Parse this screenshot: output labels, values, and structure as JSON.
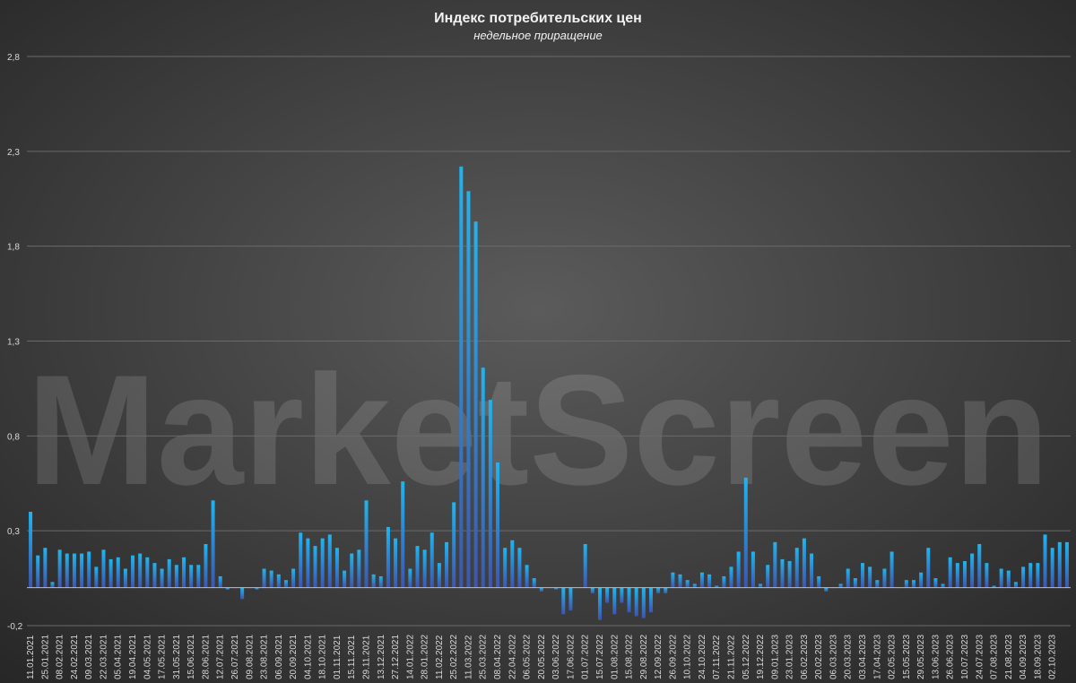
{
  "chart_data": {
    "type": "bar",
    "title": "Индекс потребительских цен",
    "subtitle": "недельное приращение",
    "watermark": "MarketScreen",
    "color": "#1fb4f0",
    "grid": true,
    "ylim": [
      -0.2,
      2.8
    ],
    "yticks": [
      {
        "value": -0.2,
        "label": "-0,2"
      },
      {
        "value": 0.3,
        "label": "0,3"
      },
      {
        "value": 0.8,
        "label": "0,8"
      },
      {
        "value": 1.3,
        "label": "1,3"
      },
      {
        "value": 1.8,
        "label": "1,8"
      },
      {
        "value": 2.3,
        "label": "2,3"
      },
      {
        "value": 2.8,
        "label": "2,8"
      }
    ],
    "categories": [
      "11.01.2021",
      null,
      "25.01.2021",
      null,
      "08.02.2021",
      null,
      "24.02.2021",
      null,
      "09.03.2021",
      null,
      "22.03.2021",
      null,
      "05.04.2021",
      null,
      "19.04.2021",
      null,
      "04.05.2021",
      null,
      "17.05.2021",
      null,
      "31.05.2021",
      null,
      "15.06.2021",
      null,
      "28.06.2021",
      null,
      "12.07.2021",
      null,
      "26.07.2021",
      null,
      "09.08.2021",
      null,
      "23.08.2021",
      null,
      "06.09.2021",
      null,
      "20.09.2021",
      null,
      "04.10.2021",
      null,
      "18.10.2021",
      null,
      "01.11.2021",
      null,
      "15.11.2021",
      null,
      "29.11.2021",
      null,
      "13.12.2021",
      null,
      "27.12.2021",
      null,
      "14.01.2022",
      null,
      "28.01.2022",
      null,
      "11.02.2022",
      null,
      "25.02.2022",
      null,
      "11.03.2022",
      null,
      "25.03.2022",
      null,
      "08.04.2022",
      null,
      "22.04.2022",
      null,
      "06.05.2022",
      null,
      "20.05.2022",
      null,
      "03.06.2022",
      null,
      "17.06.2022",
      null,
      "01.07.2022",
      null,
      "15.07.2022",
      null,
      "01.08.2022",
      null,
      "15.08.2022",
      null,
      "29.08.2022",
      null,
      "12.09.2022",
      null,
      "26.09.2022",
      null,
      "10.10.2022",
      null,
      "24.10.2022",
      null,
      "07.11.2022",
      null,
      "21.11.2022",
      null,
      "05.12.2022",
      null,
      "19.12.2022",
      null,
      "09.01.2023",
      null,
      "23.01.2023",
      null,
      "06.02.2023",
      null,
      "20.02.2023",
      null,
      "06.03.2023",
      null,
      "20.03.2023",
      null,
      "03.04.2023",
      null,
      "17.04.2023",
      null,
      "02.05.2023",
      null,
      "15.05.2023",
      null,
      "29.05.2023",
      null,
      "13.06.2023",
      null,
      "26.06.2023",
      null,
      "10.07.2023",
      null,
      "24.07.2023",
      null,
      "07.08.2023",
      null,
      "21.08.2023",
      null,
      "04.09.2023",
      null,
      "18.09.2023",
      null,
      "02.10.2023",
      null,
      null
    ],
    "values": [
      0.4,
      0.17,
      0.21,
      0.03,
      0.2,
      0.18,
      0.18,
      0.18,
      0.19,
      0.11,
      0.2,
      0.15,
      0.16,
      0.1,
      0.17,
      0.18,
      0.16,
      0.13,
      0.1,
      0.15,
      0.12,
      0.16,
      0.12,
      0.12,
      0.23,
      0.46,
      0.06,
      -0.01,
      0,
      -0.06,
      0,
      -0.01,
      0.1,
      0.09,
      0.07,
      0.04,
      0.1,
      0.29,
      0.26,
      0.22,
      0.26,
      0.28,
      0.21,
      0.09,
      0.18,
      0.2,
      0.46,
      0.07,
      0.06,
      0.32,
      0.26,
      0.56,
      0.1,
      0.22,
      0.2,
      0.29,
      0.13,
      0.24,
      0.45,
      2.22,
      2.09,
      1.93,
      1.16,
      0.99,
      0.66,
      0.21,
      0.25,
      0.21,
      0.12,
      0.05,
      -0.02,
      0,
      -0.01,
      -0.14,
      -0.12,
      0,
      0.23,
      -0.03,
      -0.17,
      -0.08,
      -0.14,
      -0.08,
      -0.13,
      -0.15,
      -0.16,
      -0.13,
      -0.03,
      -0.03,
      0.08,
      0.07,
      0.04,
      0.02,
      0.08,
      0.07,
      0.01,
      0.06,
      0.11,
      0.19,
      0.58,
      0.19,
      0.02,
      0.12,
      0.24,
      0.15,
      0.14,
      0.21,
      0.26,
      0.18,
      0.06,
      -0.02,
      0,
      0.02,
      0.1,
      0.05,
      0.13,
      0.11,
      0.04,
      0.1,
      0.19,
      0,
      0.04,
      0.04,
      0.08,
      0.21,
      0.05,
      0.02,
      0.16,
      0.13,
      0.14,
      0.18,
      0.23,
      0.13,
      0.01,
      0.1,
      0.09,
      0.03,
      0.11,
      0.13,
      0.13,
      0.28,
      0.21,
      0.24,
      0.24
    ]
  }
}
